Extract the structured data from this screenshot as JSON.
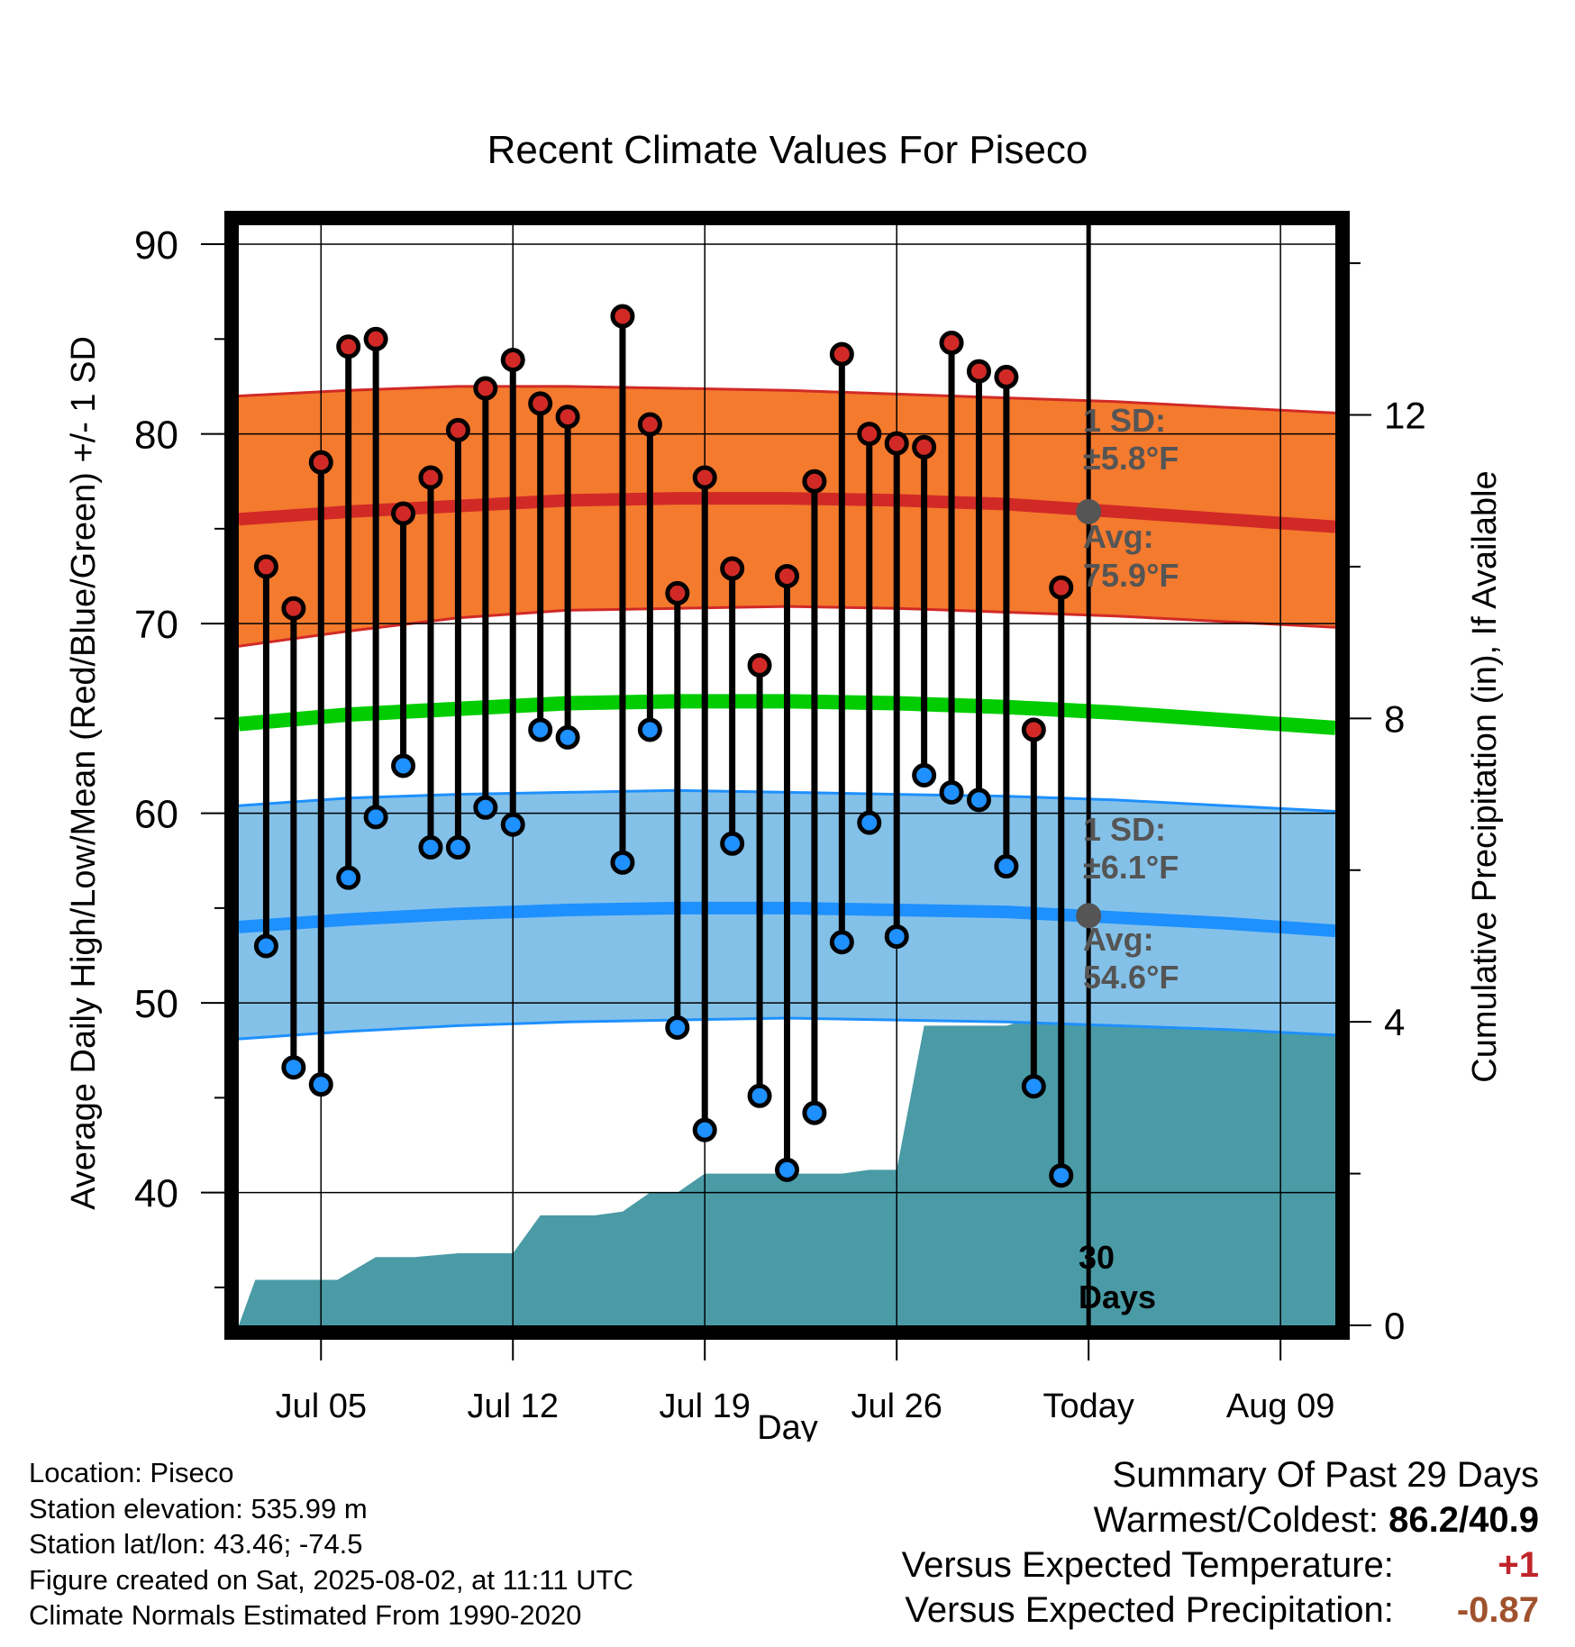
{
  "chart_data": {
    "type": "line",
    "title": "Recent Climate Values For Piseco",
    "xlabel": "Day",
    "ylabel": "Average Daily High/Low/Mean (Red/Blue/Green) +/- 1 SD",
    "y2label": "Cumulative Precipitation (in), If Available",
    "x_ticks": [
      "Jul 05",
      "Jul 12",
      "Jul 19",
      "Jul 26",
      "Today",
      "Aug 09"
    ],
    "x_tick_days": [
      5,
      12,
      19,
      26,
      33,
      40
    ],
    "x_range": [
      2,
      42
    ],
    "ylim": [
      33,
      91
    ],
    "y_ticks": [
      40,
      50,
      60,
      70,
      80,
      90
    ],
    "y2lim": [
      0,
      14.5
    ],
    "y2_ticks": [
      0,
      4,
      8,
      12
    ],
    "today_day": 33,
    "grid": true,
    "days": [
      3,
      4,
      5,
      6,
      7,
      8,
      9,
      10,
      11,
      12,
      13,
      14,
      16,
      17,
      18,
      19,
      20,
      21,
      22,
      23,
      24,
      25,
      26,
      27,
      28,
      29,
      30,
      31,
      32
    ],
    "highs": [
      73.0,
      70.8,
      78.5,
      84.6,
      85.0,
      75.8,
      77.7,
      80.2,
      82.4,
      83.9,
      81.6,
      80.9,
      86.2,
      80.5,
      71.6,
      77.7,
      72.9,
      67.8,
      72.5,
      77.5,
      84.2,
      80.0,
      79.5,
      79.3,
      84.8,
      83.3,
      83.0,
      64.4,
      71.9
    ],
    "lows": [
      53.0,
      46.6,
      45.7,
      56.6,
      59.8,
      62.5,
      58.2,
      58.2,
      60.3,
      59.4,
      64.4,
      64.0,
      57.4,
      64.4,
      48.7,
      43.3,
      58.4,
      45.1,
      41.2,
      44.2,
      53.2,
      59.5,
      53.5,
      62.0,
      61.1,
      60.7,
      57.2,
      45.6,
      40.9
    ],
    "normal_high": {
      "x": [
        2,
        6,
        10,
        14,
        18,
        22,
        26,
        30,
        34,
        38,
        42
      ],
      "mean": [
        75.5,
        75.9,
        76.2,
        76.5,
        76.6,
        76.6,
        76.5,
        76.3,
        75.9,
        75.5,
        75.1
      ],
      "upper": [
        82.0,
        82.3,
        82.5,
        82.5,
        82.4,
        82.3,
        82.1,
        81.9,
        81.7,
        81.4,
        81.1
      ],
      "lower": [
        68.8,
        69.6,
        70.3,
        70.7,
        70.8,
        70.9,
        70.8,
        70.6,
        70.4,
        70.1,
        69.8
      ]
    },
    "normal_mean": {
      "x": [
        2,
        6,
        10,
        14,
        18,
        22,
        26,
        30,
        34,
        38,
        42
      ],
      "mean": [
        64.7,
        65.2,
        65.5,
        65.8,
        65.9,
        65.9,
        65.8,
        65.6,
        65.3,
        64.9,
        64.5
      ]
    },
    "normal_low": {
      "x": [
        2,
        6,
        10,
        14,
        18,
        22,
        26,
        30,
        34,
        38,
        42
      ],
      "mean": [
        54.0,
        54.4,
        54.7,
        54.9,
        55.0,
        55.0,
        54.9,
        54.8,
        54.5,
        54.2,
        53.8
      ],
      "upper": [
        60.4,
        60.8,
        61.0,
        61.1,
        61.2,
        61.1,
        61.0,
        60.9,
        60.7,
        60.4,
        60.1
      ],
      "lower": [
        48.1,
        48.5,
        48.8,
        49.0,
        49.1,
        49.2,
        49.1,
        49.0,
        48.8,
        48.6,
        48.3
      ]
    },
    "precip": {
      "x": [
        2,
        2.6,
        5,
        5.6,
        7,
        8.4,
        10,
        12,
        13,
        15,
        16,
        17,
        18,
        19,
        20,
        22,
        24,
        25,
        26,
        27,
        28,
        30,
        31,
        32,
        33,
        42
      ],
      "y": [
        0,
        0.6,
        0.6,
        0.6,
        0.9,
        0.9,
        0.95,
        0.95,
        1.45,
        1.45,
        1.5,
        1.75,
        1.75,
        2.0,
        2.0,
        2.0,
        2.0,
        2.05,
        2.05,
        3.95,
        3.95,
        3.95,
        4.05,
        4.05,
        4.05,
        4.05
      ]
    },
    "annotations": {
      "high_sd_label": "1 SD:",
      "high_sd_value": "±5.8°F",
      "high_avg_label": "Avg:",
      "high_avg_value": "75.9°F",
      "high_avg_marker": 75.9,
      "low_sd_label": "1 SD:",
      "low_sd_value": "±6.1°F",
      "low_avg_label": "Avg:",
      "low_avg_value": "54.6°F",
      "low_avg_marker": 54.6,
      "window_number": "30",
      "window_unit": "Days"
    },
    "colors": {
      "high_band": "#f47a2e",
      "high_line": "#d12a26",
      "mean_line": "#00cc00",
      "low_band": "#84c1e8",
      "low_line": "#1e90ff",
      "precip": "#4a9ba5",
      "high_dot": "#d12a26",
      "low_dot": "#1e90ff",
      "annotation": "#555555"
    }
  },
  "footer": {
    "location": "Location: Piseco",
    "elevation": "Station elevation: 535.99 m",
    "latlon": "Station lat/lon: 43.46; -74.5",
    "created": "Figure created on Sat, 2025-08-02, at 11:11 UTC",
    "normals": "Climate Normals Estimated From 1990-2020"
  },
  "summary": {
    "heading": "Summary Of Past 29 Days",
    "warmest_label": "Warmest/Coldest:",
    "warmest_value": "86.2/40.9",
    "temp_label": "Versus Expected Temperature:",
    "temp_value": "+1",
    "precip_label": "Versus Expected Precipitation:",
    "precip_value": "-0.87"
  }
}
